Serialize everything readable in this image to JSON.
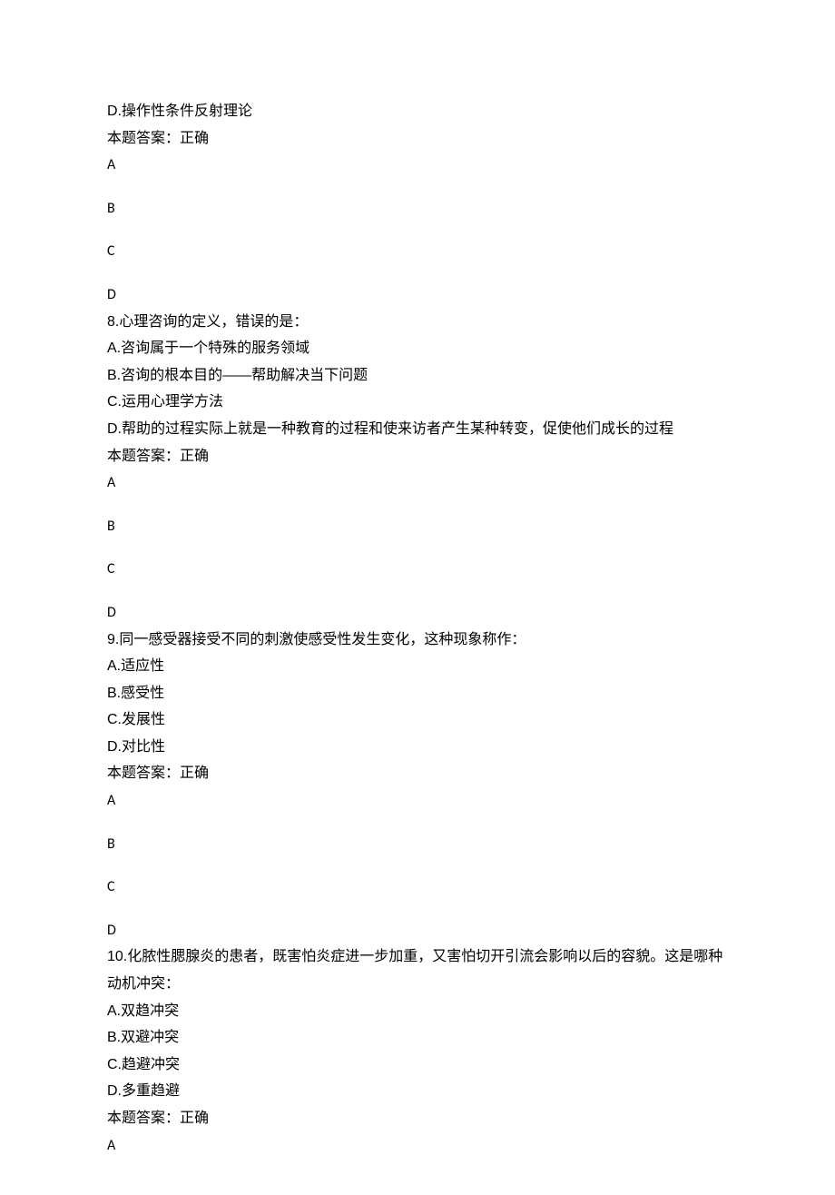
{
  "q7_tail": {
    "optionD": "D.操作性条件反射理论",
    "answer_line": "本题答案：正确",
    "choices": [
      "A",
      "B",
      "C",
      "D"
    ]
  },
  "q8": {
    "stem": "8.心理咨询的定义，错误的是：",
    "options": [
      "A.咨询属于一个特殊的服务领域",
      "B.咨询的根本目的——帮助解决当下问题",
      "C.运用心理学方法",
      "D.帮助的过程实际上就是一种教育的过程和使来访者产生某种转变，促使他们成长的过程"
    ],
    "answer_line": "本题答案：正确",
    "choices": [
      "A",
      "B",
      "C",
      "D"
    ]
  },
  "q9": {
    "stem": "9.同一感受器接受不同的刺激使感受性发生变化，这种现象称作：",
    "options": [
      "A.适应性",
      "B.感受性",
      "C.发展性",
      "D.对比性"
    ],
    "answer_line": "本题答案：正确",
    "choices": [
      "A",
      "B",
      "C",
      "D"
    ]
  },
  "q10": {
    "stem": "10.化脓性腮腺炎的患者，既害怕炎症进一步加重，又害怕切开引流会影响以后的容貌。这是哪种动机冲突：",
    "options": [
      "A.双趋冲突",
      "B.双避冲突",
      "C.趋避冲突",
      "D.多重趋避"
    ],
    "answer_line": "本题答案：正确",
    "choices": [
      "A"
    ]
  }
}
